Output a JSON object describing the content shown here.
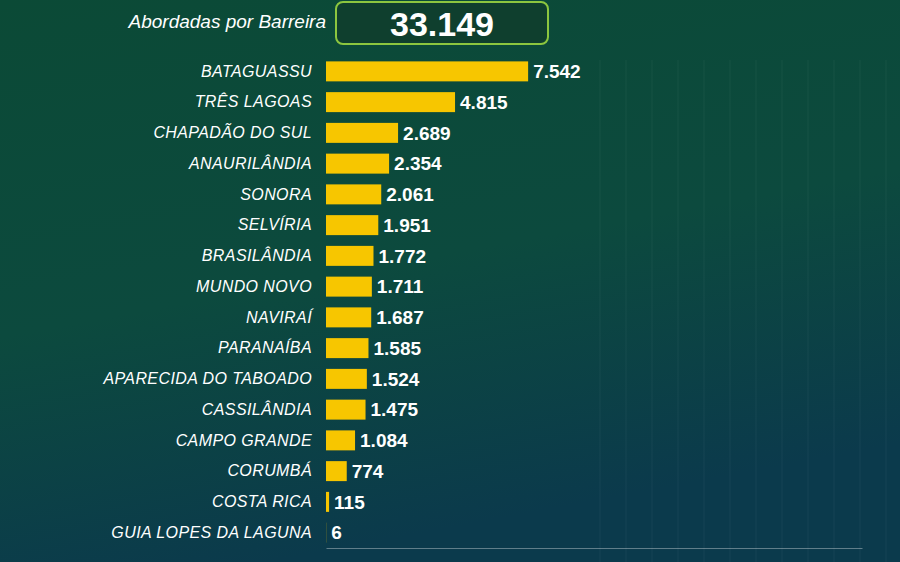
{
  "chart_data": {
    "type": "bar",
    "orientation": "horizontal",
    "title": "Abordadas por Barreira",
    "annotations": [
      "33.149"
    ],
    "categories": [
      "BATAGUASSU",
      "TRÊS LAGOAS",
      "CHAPADÃO DO SUL",
      "ANAURILÂNDIA",
      "SONORA",
      "SELVÍRIA",
      "BRASILÂNDIA",
      "MUNDO NOVO",
      "NAVIRAÍ",
      "PARANAÍBA",
      "APARECIDA DO TABOADO",
      "CASSILÂNDIA",
      "CAMPO GRANDE",
      "CORUMBÁ",
      "COSTA RICA",
      "GUIA LOPES DA LAGUNA"
    ],
    "values": [
      7542,
      4815,
      2689,
      2354,
      2061,
      1951,
      1772,
      1711,
      1687,
      1585,
      1524,
      1475,
      1084,
      774,
      115,
      6
    ],
    "value_labels": [
      "7.542",
      "4.815",
      "2.689",
      "2.354",
      "2.061",
      "1.951",
      "1.772",
      "1.711",
      "1.687",
      "1.585",
      "1.524",
      "1.475",
      "1.084",
      "774",
      "115",
      "6"
    ],
    "color": "#f7c600",
    "data_labels": true,
    "tick_labels": "y",
    "xlim": [
      0,
      20000
    ]
  }
}
